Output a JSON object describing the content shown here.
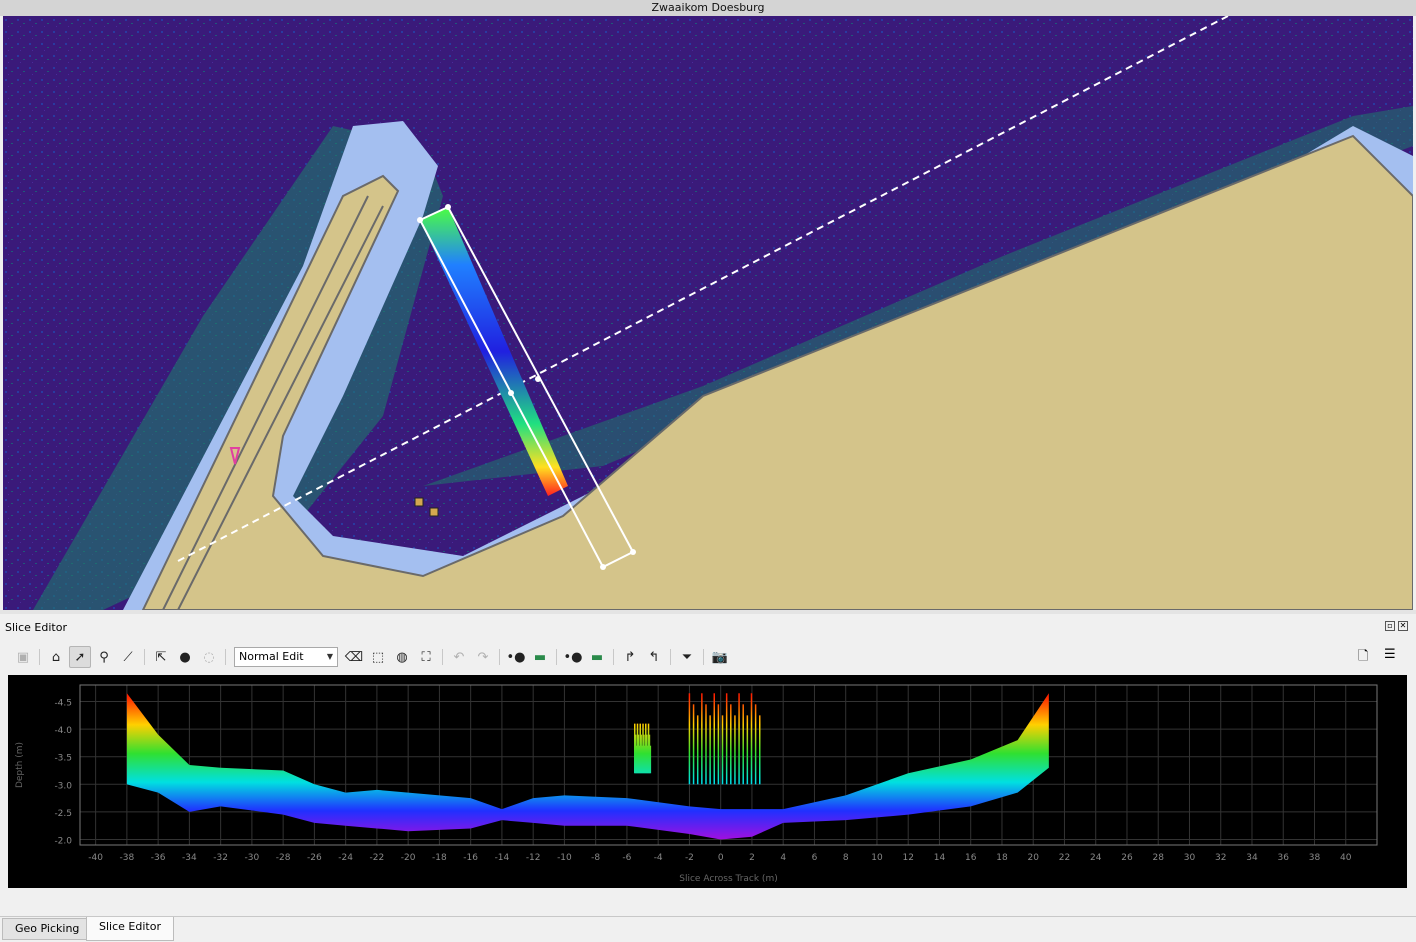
{
  "window": {
    "title": "Zwaaikom Doesburg"
  },
  "panel": {
    "title": "Slice Editor"
  },
  "toolbar": {
    "mode_select": "Normal Edit",
    "icons": [
      "save-icon",
      "home-icon",
      "pointer-icon",
      "zoom-icon",
      "ruler-icon",
      "select-file-icon",
      "select-point-icon",
      "select-disabled-icon",
      "eraser-icon",
      "rect-select-icon",
      "lasso-select-icon",
      "polygon-select-icon",
      "undo-icon",
      "redo-icon",
      "point-style-icon",
      "color-map-icon",
      "point-style-2-icon",
      "color-map-2-icon",
      "redo-arrow-icon",
      "back-arrow-icon",
      "filter-icon",
      "camera-icon",
      "info-icon",
      "notes-icon"
    ]
  },
  "colors": {
    "accent_red": "#ff2020",
    "land": "#d4c48a",
    "water": "#a4bff0",
    "background": "#3a1a7a"
  },
  "chart_data": {
    "type": "scatter",
    "title": "",
    "xlabel": "Slice Across Track (m)",
    "ylabel": "Depth (m)",
    "xlim": [
      -41,
      42
    ],
    "ylim": [
      -4.8,
      -1.9
    ],
    "y_inverted": true,
    "grid": true,
    "x_ticks": [
      "-40",
      "-38",
      "-36",
      "-34",
      "-32",
      "-30",
      "-28",
      "-26",
      "-24",
      "-22",
      "-20",
      "-18",
      "-16",
      "-14",
      "-12",
      "-10",
      "-8",
      "-6",
      "-4",
      "-2",
      "0",
      "2",
      "4",
      "6",
      "8",
      "10",
      "12",
      "14",
      "16",
      "18",
      "20",
      "22",
      "24",
      "26",
      "28",
      "30",
      "32",
      "34",
      "36",
      "38",
      "40"
    ],
    "y_ticks": [
      "-4.5",
      "-4.0",
      "-3.5",
      "-3.0",
      "-2.5",
      "-2.0"
    ],
    "profile": {
      "x": [
        -38,
        -36,
        -34,
        -32,
        -28,
        -26,
        -24,
        -22,
        -20,
        -16,
        -14,
        -12,
        -10,
        -6,
        -2,
        0,
        2,
        4,
        8,
        12,
        16,
        19,
        21
      ],
      "top": [
        -4.65,
        -3.9,
        -3.35,
        -3.3,
        -3.25,
        -3.0,
        -2.85,
        -2.9,
        -2.85,
        -2.75,
        -2.55,
        -2.75,
        -2.8,
        -2.75,
        -2.6,
        -2.55,
        -2.55,
        -2.55,
        -2.8,
        -3.2,
        -3.45,
        -3.8,
        -4.65
      ],
      "bottom": [
        -3.0,
        -2.85,
        -2.5,
        -2.6,
        -2.45,
        -2.3,
        -2.25,
        -2.2,
        -2.15,
        -2.2,
        -2.35,
        -2.3,
        -2.25,
        -2.25,
        -2.1,
        -2.0,
        -2.05,
        -2.3,
        -2.35,
        -2.45,
        -2.6,
        -2.85,
        -3.3
      ]
    },
    "noise_clusters": [
      {
        "x": [
          -2,
          2.5
        ],
        "top": -4.65,
        "bottom": -3.0
      },
      {
        "x": [
          -5.5,
          -4.5
        ],
        "top": -4.1,
        "bottom": -3.2
      }
    ]
  },
  "tabs": [
    {
      "label": "Geo Picking",
      "selected": false
    },
    {
      "label": "Slice Editor",
      "selected": true
    }
  ]
}
